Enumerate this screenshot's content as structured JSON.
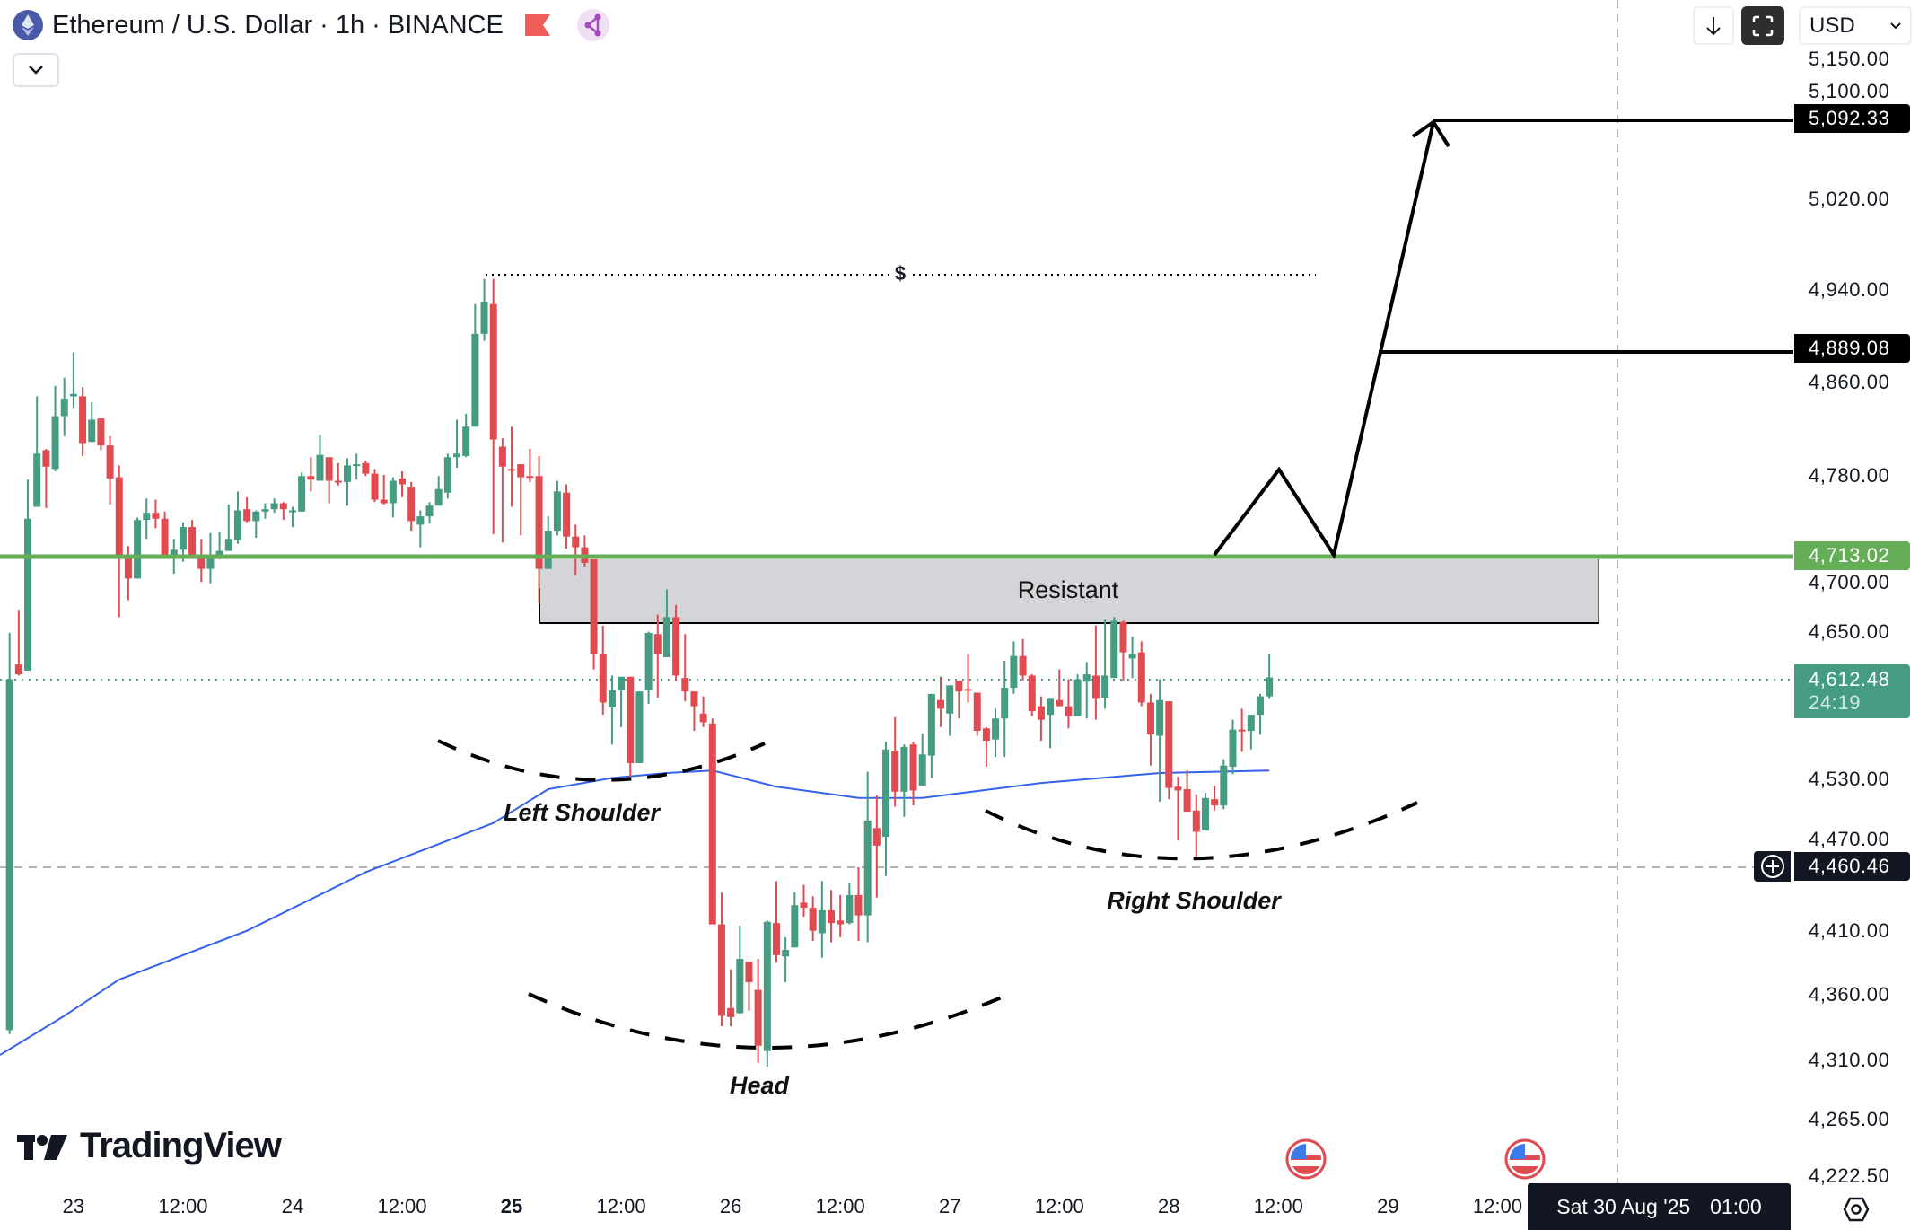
{
  "header": {
    "title": "Ethereum / U.S. Dollar · 1h · BINANCE",
    "symbol_icon": "ethereum-icon",
    "flag_icon": "red-flag-icon",
    "share_icon": "share-nodes-icon",
    "collapse_icon": "chevron-down-icon"
  },
  "toolbar": {
    "download_icon": "arrow-down-icon",
    "fullscreen_icon": "fullscreen-icon",
    "currency": "USD"
  },
  "logo": "TradingView",
  "colors": {
    "up": "#459c82",
    "down": "#e04b51",
    "resistance_line": "#66ad58",
    "moving_average": "#3461ee",
    "zone_fill": "#d4d5d8",
    "drawing": "#000000"
  },
  "annotations": {
    "zone_label": "Resistant",
    "left_shoulder": "Left Shoulder",
    "head": "Head",
    "right_shoulder": "Right Shoulder",
    "liquidity_label": "$"
  },
  "price_badges": [
    {
      "label": "5,092.33",
      "price": 5092.33,
      "color": "#000000"
    },
    {
      "label": "4,889.08",
      "price": 4889.08,
      "color": "#000000"
    },
    {
      "label": "4,713.02",
      "price": 4713.02,
      "color": "#66ad58"
    },
    {
      "label": "4,460.46",
      "price": 4460.46,
      "color": "#131722"
    }
  ],
  "last_price": {
    "label": "4,612.48",
    "countdown": "24:19",
    "price": 4612.48,
    "color": "#459c82"
  },
  "crosshair": {
    "time_label_date": "Sat 30 Aug '25",
    "time_label_time": "01:00",
    "price": 4460.46
  },
  "chart_data": {
    "type": "candlestick",
    "symbol": "ETHUSD",
    "exchange": "BINANCE",
    "interval": "1h",
    "y_scale": "log",
    "first_candle": "2025-08-22 17:00",
    "last_candle": "2025-08-28 11:00",
    "y_ticks": [
      {
        "label": "5,150.00",
        "value": 5150
      },
      {
        "label": "5,100.00",
        "value": 5100
      },
      {
        "label": "5,020.00",
        "value": 5020
      },
      {
        "label": "4,940.00",
        "value": 4940
      },
      {
        "label": "4,860.00",
        "value": 4860
      },
      {
        "label": "4,780.00",
        "value": 4780
      },
      {
        "label": "4,700.00",
        "value": 4700
      },
      {
        "label": "4,650.00",
        "value": 4650
      },
      {
        "label": "4,530.00",
        "value": 4530
      },
      {
        "label": "4,470.00",
        "value": 4470
      },
      {
        "label": "4,410.00",
        "value": 4410
      },
      {
        "label": "4,360.00",
        "value": 4360
      },
      {
        "label": "4,310.00",
        "value": 4310
      },
      {
        "label": "4,265.00",
        "value": 4265
      },
      {
        "label": "4,222.50",
        "value": 4222.5
      }
    ],
    "x_ticks": [
      {
        "label": "23",
        "bold": false
      },
      {
        "label": "12:00",
        "bold": false
      },
      {
        "label": "24",
        "bold": false
      },
      {
        "label": "12:00",
        "bold": false
      },
      {
        "label": "25",
        "bold": true
      },
      {
        "label": "12:00",
        "bold": false
      },
      {
        "label": "26",
        "bold": false
      },
      {
        "label": "12:00",
        "bold": false
      },
      {
        "label": "27",
        "bold": false
      },
      {
        "label": "12:00",
        "bold": false
      },
      {
        "label": "28",
        "bold": false
      },
      {
        "label": "12:00",
        "bold": false
      },
      {
        "label": "29",
        "bold": false
      },
      {
        "label": "12:00",
        "bold": false
      }
    ],
    "ohlc_fields": [
      "open",
      "high",
      "low",
      "close"
    ],
    "candles": [
      [
        4333,
        4649,
        4330,
        4611
      ],
      [
        4623,
        4668,
        4614,
        4615
      ],
      [
        4618,
        4777,
        4618,
        4744
      ],
      [
        4754,
        4848,
        4754,
        4799
      ],
      [
        4802,
        4803,
        4753,
        4788
      ],
      [
        4786,
        4857,
        4784,
        4831
      ],
      [
        4831,
        4864,
        4814,
        4846
      ],
      [
        4848,
        4886,
        4838,
        4850
      ],
      [
        4848,
        4856,
        4797,
        4808
      ],
      [
        4809,
        4843,
        4809,
        4828
      ],
      [
        4829,
        4829,
        4802,
        4806
      ],
      [
        4806,
        4814,
        4756,
        4778
      ],
      [
        4779,
        4789,
        4662,
        4713
      ],
      [
        4713,
        4721,
        4676,
        4694
      ],
      [
        4694,
        4745,
        4694,
        4743
      ],
      [
        4743,
        4761,
        4727,
        4749
      ],
      [
        4749,
        4760,
        4736,
        4744
      ],
      [
        4744,
        4750,
        4711,
        4711
      ],
      [
        4711,
        4727,
        4698,
        4718
      ],
      [
        4718,
        4741,
        4708,
        4737
      ],
      [
        4737,
        4743,
        4711,
        4711
      ],
      [
        4711,
        4727,
        4691,
        4702
      ],
      [
        4702,
        4732,
        4690,
        4714
      ],
      [
        4714,
        4733,
        4710,
        4717
      ],
      [
        4717,
        4756,
        4717,
        4727
      ],
      [
        4726,
        4767,
        4723,
        4751
      ],
      [
        4752,
        4762,
        4741,
        4742
      ],
      [
        4742,
        4751,
        4728,
        4750
      ],
      [
        4750,
        4757,
        4744,
        4752
      ],
      [
        4752,
        4761,
        4749,
        4757
      ],
      [
        4757,
        4758,
        4743,
        4752
      ],
      [
        4750,
        4754,
        4737,
        4751
      ],
      [
        4750,
        4783,
        4750,
        4780
      ],
      [
        4780,
        4796,
        4767,
        4777
      ],
      [
        4776,
        4815,
        4776,
        4798
      ],
      [
        4796,
        4796,
        4757,
        4776
      ],
      [
        4776,
        4791,
        4772,
        4775
      ],
      [
        4775,
        4795,
        4755,
        4789
      ],
      [
        4789,
        4799,
        4777,
        4790
      ],
      [
        4791,
        4793,
        4780,
        4782
      ],
      [
        4782,
        4786,
        4758,
        4760
      ],
      [
        4760,
        4781,
        4756,
        4757
      ],
      [
        4757,
        4779,
        4745,
        4776
      ],
      [
        4778,
        4784,
        4762,
        4773
      ],
      [
        4771,
        4775,
        4734,
        4742
      ],
      [
        4739,
        4751,
        4720,
        4746
      ],
      [
        4746,
        4758,
        4740,
        4755
      ],
      [
        4755,
        4780,
        4755,
        4769
      ],
      [
        4766,
        4799,
        4761,
        4796
      ],
      [
        4796,
        4828,
        4787,
        4799
      ],
      [
        4797,
        4833,
        4796,
        4822
      ],
      [
        4822,
        4928,
        4822,
        4902
      ],
      [
        4902,
        4950,
        4896,
        4930
      ],
      [
        4928,
        4950,
        4731,
        4811
      ],
      [
        4805,
        4812,
        4724,
        4788
      ],
      [
        4786,
        4822,
        4754,
        4785
      ],
      [
        4790,
        4790,
        4730,
        4779
      ],
      [
        4780,
        4803,
        4775,
        4779
      ],
      [
        4780,
        4797,
        4673,
        4702
      ],
      [
        4702,
        4746,
        4702,
        4734
      ],
      [
        4734,
        4776,
        4730,
        4767
      ],
      [
        4766,
        4773,
        4719,
        4729
      ],
      [
        4729,
        4739,
        4697,
        4720
      ],
      [
        4720,
        4730,
        4704,
        4707
      ],
      [
        4710,
        4710,
        4619,
        4632
      ],
      [
        4632,
        4655,
        4582,
        4592
      ],
      [
        4588,
        4614,
        4558,
        4602
      ],
      [
        4602,
        4613,
        4572,
        4613
      ],
      [
        4613,
        4613,
        4529,
        4543
      ],
      [
        4543,
        4601,
        4543,
        4601
      ],
      [
        4602,
        4650,
        4591,
        4649
      ],
      [
        4648,
        4664,
        4596,
        4632
      ],
      [
        4629,
        4685,
        4629,
        4662
      ],
      [
        4662,
        4672,
        4610,
        4614
      ],
      [
        4612,
        4648,
        4593,
        4601
      ],
      [
        4601,
        4601,
        4569,
        4589
      ],
      [
        4583,
        4597,
        4572,
        4576
      ],
      [
        4575,
        4579,
        4415,
        4415
      ],
      [
        4415,
        4440,
        4336,
        4344
      ],
      [
        4350,
        4380,
        4336,
        4343
      ],
      [
        4346,
        4414,
        4346,
        4388
      ],
      [
        4386,
        4386,
        4348,
        4370
      ],
      [
        4364,
        4388,
        4308,
        4321
      ],
      [
        4317,
        4418,
        4305,
        4417
      ],
      [
        4416,
        4449,
        4385,
        4391
      ],
      [
        4390,
        4405,
        4370,
        4395
      ],
      [
        4397,
        4440,
        4397,
        4430
      ],
      [
        4432,
        4446,
        4421,
        4428
      ],
      [
        4428,
        4437,
        4402,
        4410
      ],
      [
        4408,
        4449,
        4389,
        4426
      ],
      [
        4426,
        4442,
        4401,
        4416
      ],
      [
        4418,
        4438,
        4405,
        4415
      ],
      [
        4416,
        4447,
        4415,
        4438
      ],
      [
        4438,
        4460,
        4402,
        4422
      ],
      [
        4422,
        4536,
        4401,
        4497
      ],
      [
        4491,
        4517,
        4436,
        4477
      ],
      [
        4484,
        4560,
        4453,
        4554
      ],
      [
        4553,
        4580,
        4508,
        4520
      ],
      [
        4520,
        4558,
        4500,
        4556
      ],
      [
        4558,
        4560,
        4509,
        4521
      ],
      [
        4525,
        4567,
        4525,
        4550
      ],
      [
        4549,
        4599,
        4531,
        4599
      ],
      [
        4594,
        4613,
        4572,
        4587
      ],
      [
        4583,
        4606,
        4565,
        4606
      ],
      [
        4610,
        4610,
        4579,
        4601
      ],
      [
        4603,
        4632,
        4592,
        4602
      ],
      [
        4600,
        4600,
        4565,
        4569
      ],
      [
        4571,
        4572,
        4540,
        4561
      ],
      [
        4562,
        4587,
        4548,
        4579
      ],
      [
        4579,
        4626,
        4548,
        4604
      ],
      [
        4604,
        4642,
        4599,
        4630
      ],
      [
        4630,
        4644,
        4610,
        4614
      ],
      [
        4614,
        4615,
        4581,
        4585
      ],
      [
        4589,
        4597,
        4561,
        4578
      ],
      [
        4582,
        4595,
        4555,
        4595
      ],
      [
        4594,
        4619,
        4589,
        4589
      ],
      [
        4589,
        4611,
        4571,
        4581
      ],
      [
        4581,
        4615,
        4581,
        4611
      ],
      [
        4609,
        4625,
        4579,
        4615
      ],
      [
        4614,
        4655,
        4578,
        4595
      ],
      [
        4596,
        4660,
        4587,
        4614
      ],
      [
        4612,
        4662,
        4612,
        4659
      ],
      [
        4658,
        4659,
        4610,
        4633
      ],
      [
        4628,
        4646,
        4612,
        4632
      ],
      [
        4633,
        4642,
        4589,
        4592
      ],
      [
        4592,
        4599,
        4541,
        4566
      ],
      [
        4565,
        4611,
        4512,
        4594
      ],
      [
        4593,
        4593,
        4514,
        4523
      ],
      [
        4524,
        4532,
        4481,
        4521
      ],
      [
        4522,
        4537,
        4504,
        4504
      ],
      [
        4505,
        4518,
        4466,
        4488
      ],
      [
        4489,
        4519,
        4489,
        4515
      ],
      [
        4514,
        4525,
        4505,
        4509
      ],
      [
        4509,
        4546,
        4506,
        4541
      ],
      [
        4540,
        4578,
        4534,
        4570
      ],
      [
        4570,
        4587,
        4552,
        4569
      ],
      [
        4569,
        4582,
        4554,
        4582
      ],
      [
        4582,
        4599,
        4566,
        4597
      ],
      [
        4597,
        4632,
        4595,
        4612.48
      ]
    ],
    "moving_average": [
      [
        1,
        4314
      ],
      [
        7,
        4344
      ],
      [
        13,
        4372
      ],
      [
        27,
        4410
      ],
      [
        40,
        4456
      ],
      [
        54,
        4495
      ],
      [
        60,
        4522
      ],
      [
        67,
        4531
      ],
      [
        73,
        4535
      ],
      [
        78,
        4537
      ],
      [
        85,
        4524
      ],
      [
        94,
        4515
      ],
      [
        101,
        4515
      ],
      [
        114,
        4527
      ],
      [
        127,
        4535
      ],
      [
        139,
        4537
      ]
    ],
    "levels": {
      "resistance": 4713.02,
      "target_1": 4889.08,
      "target_2": 5092.33,
      "liquidity_high": 4950
    },
    "resistance_zone": [
      4658,
      4713.02
    ]
  }
}
